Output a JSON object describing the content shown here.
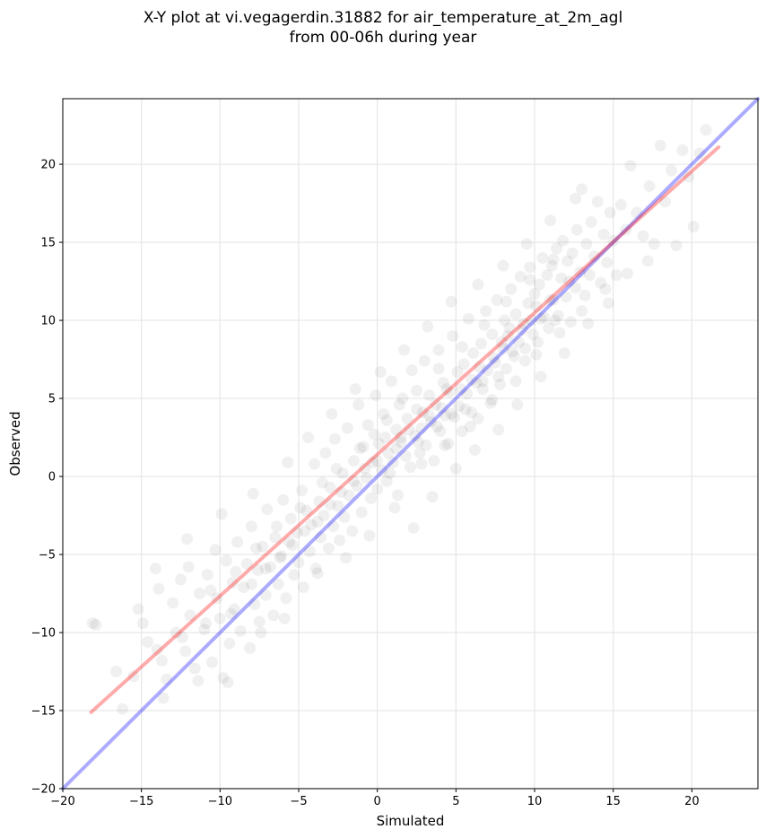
{
  "chart_data": {
    "type": "scatter",
    "title": "X-Y plot at vi.vegagerdin.31882 for air_temperature_at_2m_agl",
    "subtitle": "from 00-06h during year",
    "xlabel": "Simulated",
    "ylabel": "Observed",
    "xlim": [
      -20,
      24.2
    ],
    "ylim": [
      -20,
      24.2
    ],
    "xticks": [
      -20,
      -15,
      -10,
      -5,
      0,
      5,
      10,
      15,
      20
    ],
    "yticks": [
      -20,
      -15,
      -10,
      -5,
      0,
      5,
      10,
      15,
      20
    ],
    "xtick_labels": [
      "−20",
      "−15",
      "−10",
      "−5",
      "0",
      "5",
      "10",
      "15",
      "20"
    ],
    "ytick_labels": [
      "−20",
      "−15",
      "−10",
      "−5",
      "0",
      "5",
      "10",
      "15",
      "20"
    ],
    "grid": true,
    "point_color": "#000000",
    "point_opacity": 0.06,
    "points": [
      [
        -18.1,
        -9.4
      ],
      [
        -16.6,
        -12.5
      ],
      [
        -16.2,
        -14.9
      ],
      [
        -15.2,
        -8.5
      ],
      [
        -14.9,
        -9.4
      ],
      [
        -14.6,
        -10.6
      ],
      [
        -14.1,
        -5.9
      ],
      [
        -13.9,
        -7.2
      ],
      [
        -13.7,
        -11.8
      ],
      [
        -13.4,
        -13.0
      ],
      [
        -13.0,
        -8.1
      ],
      [
        -12.8,
        -10.0
      ],
      [
        -12.5,
        -6.6
      ],
      [
        -12.2,
        -11.2
      ],
      [
        -12.0,
        -5.8
      ],
      [
        -11.9,
        -8.9
      ],
      [
        -11.6,
        -12.3
      ],
      [
        -11.3,
        -7.5
      ],
      [
        -11.0,
        -9.8
      ],
      [
        -10.8,
        -6.3
      ],
      [
        -10.5,
        -11.9
      ],
      [
        -10.3,
        -4.7
      ],
      [
        -10.2,
        -7.8
      ],
      [
        -10.0,
        -9.1
      ],
      [
        -9.8,
        -12.9
      ],
      [
        -9.6,
        -5.4
      ],
      [
        -9.4,
        -10.7
      ],
      [
        -9.2,
        -6.8
      ],
      [
        -9.1,
        -8.5
      ],
      [
        -8.9,
        -4.2
      ],
      [
        -8.7,
        -9.9
      ],
      [
        -8.5,
        -7.1
      ],
      [
        -8.3,
        -5.6
      ],
      [
        -8.1,
        -11.0
      ],
      [
        -8.0,
        -3.2
      ],
      [
        -7.8,
        -8.2
      ],
      [
        -7.6,
        -6.0
      ],
      [
        -7.5,
        -9.3
      ],
      [
        -7.3,
        -4.5
      ],
      [
        -7.1,
        -7.6
      ],
      [
        -7.0,
        -2.1
      ],
      [
        -6.8,
        -5.8
      ],
      [
        -6.6,
        -8.9
      ],
      [
        -6.5,
        -3.9
      ],
      [
        -6.3,
        -6.9
      ],
      [
        -6.1,
        -5.1
      ],
      [
        -6.0,
        -1.5
      ],
      [
        -5.8,
        -7.8
      ],
      [
        -5.6,
        -4.2
      ],
      [
        -5.5,
        -2.7
      ],
      [
        -5.3,
        -6.3
      ],
      [
        -5.1,
        -3.6
      ],
      [
        -5.0,
        -5.5
      ],
      [
        -4.8,
        -0.9
      ],
      [
        -4.7,
        -7.1
      ],
      [
        -4.5,
        -2.2
      ],
      [
        -4.3,
        -4.8
      ],
      [
        -4.2,
        -3.1
      ],
      [
        -4.0,
        0.8
      ],
      [
        -3.9,
        -5.9
      ],
      [
        -3.7,
        -1.6
      ],
      [
        -3.6,
        -3.9
      ],
      [
        -3.4,
        -2.5
      ],
      [
        -3.3,
        1.5
      ],
      [
        -3.1,
        -4.6
      ],
      [
        -3.0,
        -0.7
      ],
      [
        -2.8,
        -3.2
      ],
      [
        -2.7,
        2.4
      ],
      [
        -2.5,
        -1.9
      ],
      [
        -2.4,
        -4.1
      ],
      [
        -2.2,
        0.2
      ],
      [
        -2.1,
        -2.6
      ],
      [
        -1.9,
        3.1
      ],
      [
        -1.8,
        -1.2
      ],
      [
        -1.6,
        -3.5
      ],
      [
        -1.5,
        1.0
      ],
      [
        -1.3,
        -0.6
      ],
      [
        -1.2,
        4.6
      ],
      [
        -1.0,
        -2.3
      ],
      [
        -0.9,
        1.9
      ],
      [
        -0.7,
        -0.1
      ],
      [
        -0.6,
        3.3
      ],
      [
        -0.4,
        -1.4
      ],
      [
        -0.3,
        0.9
      ],
      [
        -0.1,
        5.2
      ],
      [
        0.0,
        -0.8
      ],
      [
        0.1,
        2.1
      ],
      [
        0.3,
        0.4
      ],
      [
        0.4,
        4.0
      ],
      [
        0.6,
        -0.3
      ],
      [
        0.7,
        1.5
      ],
      [
        0.9,
        6.1
      ],
      [
        1.0,
        0.9
      ],
      [
        1.2,
        3.0
      ],
      [
        1.3,
        -1.2
      ],
      [
        1.5,
        2.2
      ],
      [
        1.6,
        5.0
      ],
      [
        1.8,
        1.3
      ],
      [
        1.9,
        3.7
      ],
      [
        2.1,
        0.6
      ],
      [
        2.2,
        6.8
      ],
      [
        2.4,
        2.6
      ],
      [
        2.5,
        4.3
      ],
      [
        2.7,
        1.5
      ],
      [
        2.8,
        3.1
      ],
      [
        3.0,
        7.4
      ],
      [
        3.1,
        2.0
      ],
      [
        3.3,
        5.2
      ],
      [
        3.4,
        3.5
      ],
      [
        3.6,
        1.0
      ],
      [
        3.7,
        4.6
      ],
      [
        3.9,
        8.1
      ],
      [
        4.0,
        2.9
      ],
      [
        4.2,
        6.0
      ],
      [
        4.3,
        3.9
      ],
      [
        4.5,
        2.1
      ],
      [
        4.6,
        5.4
      ],
      [
        4.8,
        9.0
      ],
      [
        4.9,
        3.8
      ],
      [
        5.1,
        6.7
      ],
      [
        5.2,
        4.5
      ],
      [
        5.4,
        2.9
      ],
      [
        5.5,
        7.2
      ],
      [
        5.7,
        5.3
      ],
      [
        5.8,
        10.1
      ],
      [
        6.0,
        4.1
      ],
      [
        6.1,
        7.9
      ],
      [
        6.3,
        6.0
      ],
      [
        6.4,
        3.7
      ],
      [
        6.6,
        8.5
      ],
      [
        6.7,
        5.6
      ],
      [
        6.9,
        10.6
      ],
      [
        7.0,
        6.8
      ],
      [
        7.2,
        4.7
      ],
      [
        7.3,
        9.1
      ],
      [
        7.5,
        7.3
      ],
      [
        7.6,
        11.3
      ],
      [
        7.8,
        5.9
      ],
      [
        7.9,
        8.6
      ],
      [
        8.1,
        10.0
      ],
      [
        8.2,
        6.9
      ],
      [
        8.4,
        9.5
      ],
      [
        8.5,
        12.0
      ],
      [
        8.7,
        7.7
      ],
      [
        8.8,
        10.4
      ],
      [
        9.0,
        8.6
      ],
      [
        9.1,
        12.8
      ],
      [
        9.3,
        9.8
      ],
      [
        9.4,
        7.4
      ],
      [
        9.6,
        11.1
      ],
      [
        9.7,
        13.4
      ],
      [
        9.9,
        9.1
      ],
      [
        10.0,
        11.7
      ],
      [
        10.2,
        8.6
      ],
      [
        10.3,
        12.3
      ],
      [
        10.5,
        14.0
      ],
      [
        10.6,
        10.2
      ],
      [
        10.8,
        12.9
      ],
      [
        10.9,
        9.5
      ],
      [
        11.1,
        13.5
      ],
      [
        11.2,
        11.3
      ],
      [
        11.4,
        14.6
      ],
      [
        11.5,
        10.3
      ],
      [
        11.7,
        12.7
      ],
      [
        11.8,
        15.1
      ],
      [
        12.0,
        11.5
      ],
      [
        12.1,
        13.8
      ],
      [
        12.3,
        9.9
      ],
      [
        12.4,
        14.3
      ],
      [
        12.6,
        12.1
      ],
      [
        12.7,
        15.8
      ],
      [
        12.9,
        13.1
      ],
      [
        13.0,
        18.4
      ],
      [
        13.2,
        11.6
      ],
      [
        13.3,
        14.9
      ],
      [
        13.5,
        12.9
      ],
      [
        13.6,
        16.3
      ],
      [
        13.8,
        14.1
      ],
      [
        14.0,
        17.6
      ],
      [
        14.2,
        12.4
      ],
      [
        14.4,
        15.5
      ],
      [
        14.6,
        13.7
      ],
      [
        14.8,
        16.9
      ],
      [
        15.0,
        15.1
      ],
      [
        15.2,
        12.9
      ],
      [
        15.5,
        17.4
      ],
      [
        15.8,
        15.8
      ],
      [
        16.1,
        19.9
      ],
      [
        16.5,
        16.9
      ],
      [
        16.9,
        15.4
      ],
      [
        17.3,
        18.6
      ],
      [
        17.6,
        14.9
      ],
      [
        18.0,
        21.2
      ],
      [
        18.3,
        17.6
      ],
      [
        18.7,
        19.6
      ],
      [
        19.0,
        14.8
      ],
      [
        19.4,
        20.9
      ],
      [
        19.8,
        19.2
      ],
      [
        20.1,
        16.0
      ],
      [
        20.5,
        20.7
      ],
      [
        20.9,
        22.2
      ],
      [
        -17.9,
        -9.5
      ],
      [
        -15.5,
        -12.8
      ],
      [
        -13.6,
        -14.2
      ],
      [
        -11.4,
        -13.1
      ],
      [
        -9.5,
        -13.2
      ],
      [
        -7.4,
        -10.0
      ],
      [
        -5.9,
        -9.1
      ],
      [
        -3.8,
        -6.2
      ],
      [
        -2.0,
        -5.2
      ],
      [
        -0.5,
        -3.8
      ],
      [
        1.1,
        -2.0
      ],
      [
        2.3,
        -3.3
      ],
      [
        3.5,
        -1.3
      ],
      [
        5.0,
        0.5
      ],
      [
        6.2,
        1.7
      ],
      [
        7.7,
        3.0
      ],
      [
        8.9,
        4.6
      ],
      [
        10.4,
        6.4
      ],
      [
        11.9,
        7.9
      ],
      [
        13.4,
        9.8
      ],
      [
        14.7,
        11.1
      ],
      [
        15.9,
        13.0
      ],
      [
        17.2,
        13.8
      ],
      [
        -12.1,
        -4.0
      ],
      [
        -9.9,
        -2.4
      ],
      [
        -7.9,
        -1.1
      ],
      [
        -5.7,
        0.9
      ],
      [
        -4.4,
        2.5
      ],
      [
        -2.9,
        4.0
      ],
      [
        -1.4,
        5.6
      ],
      [
        0.2,
        6.7
      ],
      [
        1.7,
        8.1
      ],
      [
        3.2,
        9.6
      ],
      [
        4.7,
        11.2
      ],
      [
        6.4,
        12.3
      ],
      [
        8.0,
        13.5
      ],
      [
        9.5,
        14.9
      ],
      [
        11.0,
        16.4
      ],
      [
        12.6,
        17.8
      ],
      [
        0.5,
        2.5
      ],
      [
        1.2,
        1.8
      ],
      [
        2.0,
        3.0
      ],
      [
        2.6,
        2.2
      ],
      [
        3.3,
        3.9
      ],
      [
        4.1,
        4.4
      ],
      [
        4.7,
        4.0
      ],
      [
        5.3,
        5.6
      ],
      [
        6.0,
        6.2
      ],
      [
        6.7,
        6.1
      ],
      [
        7.4,
        7.6
      ],
      [
        8.0,
        8.2
      ],
      [
        8.6,
        8.0
      ],
      [
        9.2,
        9.4
      ],
      [
        9.8,
        10.0
      ],
      [
        10.4,
        10.1
      ],
      [
        11.0,
        11.3
      ],
      [
        -0.8,
        0.5
      ],
      [
        -1.5,
        -0.3
      ],
      [
        -2.3,
        -1.0
      ],
      [
        -3.0,
        -1.8
      ],
      [
        -3.8,
        -2.9
      ],
      [
        -4.6,
        -3.5
      ],
      [
        -5.4,
        -4.4
      ],
      [
        -6.2,
        -5.2
      ],
      [
        -7.1,
        -5.9
      ],
      [
        -8.0,
        -6.9
      ],
      [
        0.0,
        1.0
      ],
      [
        0.8,
        0.2
      ],
      [
        1.5,
        2.5
      ],
      [
        2.9,
        4.1
      ],
      [
        3.8,
        3.2
      ],
      [
        4.4,
        5.6
      ],
      [
        5.6,
        4.3
      ],
      [
        6.5,
        7.0
      ],
      [
        7.7,
        6.4
      ],
      [
        8.3,
        9.0
      ],
      [
        9.4,
        8.2
      ],
      [
        10.1,
        10.9
      ],
      [
        11.3,
        10.0
      ],
      [
        12.2,
        12.5
      ],
      [
        -1.1,
        1.8
      ],
      [
        -2.6,
        0.5
      ],
      [
        -3.5,
        -0.4
      ],
      [
        -4.9,
        -2.0
      ],
      [
        -6.4,
        -3.2
      ],
      [
        -7.7,
        -4.6
      ],
      [
        -9.0,
        -6.1
      ],
      [
        -10.6,
        -7.3
      ],
      [
        2.5,
        5.5
      ],
      [
        3.9,
        6.9
      ],
      [
        5.4,
        8.3
      ],
      [
        6.8,
        9.7
      ],
      [
        8.2,
        11.2
      ],
      [
        9.7,
        12.6
      ],
      [
        11.2,
        13.9
      ],
      [
        1.4,
        4.6
      ],
      [
        0.6,
        3.6
      ],
      [
        -0.2,
        2.7
      ],
      [
        2.8,
        0.8
      ],
      [
        4.3,
        2.0
      ],
      [
        5.9,
        3.2
      ],
      [
        7.3,
        4.9
      ],
      [
        8.8,
        6.1
      ],
      [
        10.1,
        7.8
      ],
      [
        11.6,
        9.2
      ],
      [
        13.0,
        10.6
      ],
      [
        14.5,
        12.0
      ],
      [
        -9.3,
        -8.8
      ],
      [
        -10.9,
        -9.4
      ],
      [
        -12.4,
        -10.3
      ],
      [
        -14.0,
        -11.1
      ]
    ],
    "series": [
      {
        "color": "#0000ff",
        "opacity": 0.33,
        "x": [
          -20,
          24.2
        ],
        "y": [
          -20,
          24.2
        ]
      },
      {
        "color": "#ff0000",
        "opacity": 0.33,
        "x": [
          -18.2,
          21.7
        ],
        "y": [
          -15.1,
          21.1
        ]
      }
    ]
  }
}
